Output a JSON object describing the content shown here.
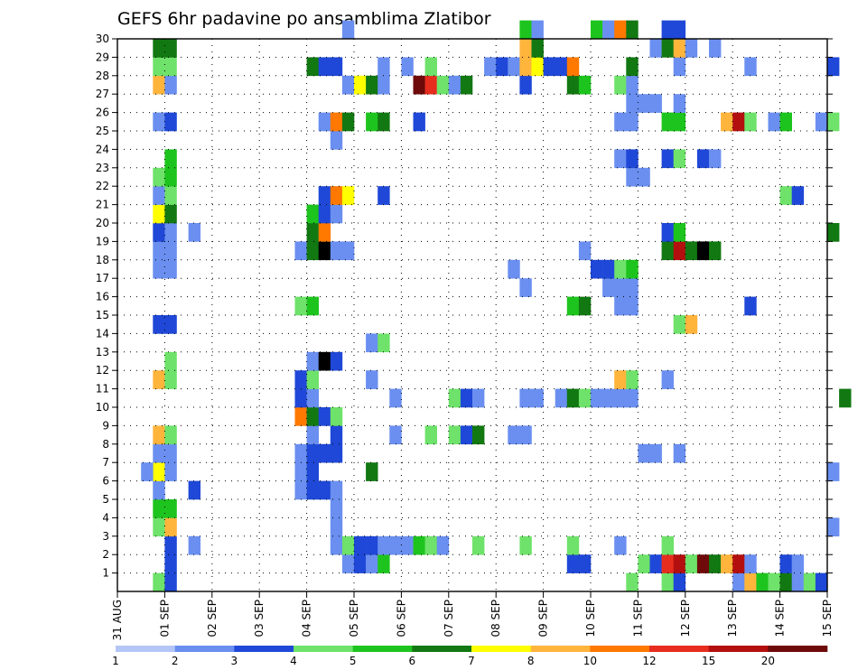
{
  "chart_data": {
    "type": "heatmap",
    "title": "GEFS 6hr padavine po ansamblima Zlatibor",
    "xlabel": "",
    "ylabel": "",
    "x_tick_labels": [
      "31 AUG",
      "01 SEP",
      "02 SEP",
      "03 SEP",
      "04 SEP",
      "05 SEP",
      "06 SEP",
      "07 SEP",
      "08 SEP",
      "09 SEP",
      "10 SEP",
      "11 SEP",
      "12 SEP",
      "13 SEP",
      "14 SEP",
      "15 SEP"
    ],
    "y_tick_labels": [
      "1",
      "2",
      "3",
      "4",
      "5",
      "6",
      "7",
      "8",
      "9",
      "10",
      "11",
      "12",
      "13",
      "14",
      "15",
      "16",
      "17",
      "18",
      "19",
      "20",
      "21",
      "22",
      "23",
      "24",
      "25",
      "26",
      "27",
      "28",
      "29",
      "30"
    ],
    "y_range": [
      0,
      30
    ],
    "x_range_days": [
      0,
      15
    ],
    "steps_per_day": 4,
    "grid": "dotted",
    "colorbar": {
      "position": "bottom",
      "levels": [
        "1",
        "2",
        "3",
        "4",
        "5",
        "6",
        "7",
        "8",
        "10",
        "12",
        "15",
        "20"
      ],
      "colors": [
        "#b3c6f7",
        "#6a8ff0",
        "#1f48d8",
        "#6ee26a",
        "#1ec41e",
        "#127812",
        "#ffff00",
        "#ffb43c",
        "#ff7800",
        "#e62d1e",
        "#b40f0f",
        "#6e0a0a"
      ]
    },
    "cells": [
      [
        0.75,
        0,
        3
      ],
      [
        0.75,
        3,
        3
      ],
      [
        0.75,
        4,
        4
      ],
      [
        0.75,
        5,
        1
      ],
      [
        0.75,
        6,
        6
      ],
      [
        0.75,
        7,
        1
      ],
      [
        0.75,
        8,
        7
      ],
      [
        0.75,
        11,
        7
      ],
      [
        0.75,
        14,
        2
      ],
      [
        0.75,
        17,
        1
      ],
      [
        0.75,
        18,
        1
      ],
      [
        0.75,
        19,
        2
      ],
      [
        0.75,
        20,
        6
      ],
      [
        0.75,
        21,
        1
      ],
      [
        0.75,
        22,
        3
      ],
      [
        0.75,
        25,
        1
      ],
      [
        0.75,
        27,
        7
      ],
      [
        0.75,
        28,
        3
      ],
      [
        0.75,
        29,
        5
      ],
      [
        1.0,
        0,
        2
      ],
      [
        1.0,
        1,
        2
      ],
      [
        1.0,
        2,
        2
      ],
      [
        1.0,
        3,
        7
      ],
      [
        1.0,
        4,
        4
      ],
      [
        1.0,
        6,
        1
      ],
      [
        1.0,
        7,
        1
      ],
      [
        1.0,
        8,
        3
      ],
      [
        1.0,
        11,
        3
      ],
      [
        1.0,
        12,
        3
      ],
      [
        1.0,
        14,
        2
      ],
      [
        1.0,
        17,
        1
      ],
      [
        1.0,
        18,
        1
      ],
      [
        1.0,
        19,
        1
      ],
      [
        1.0,
        20,
        5
      ],
      [
        1.0,
        21,
        3
      ],
      [
        1.0,
        22,
        4
      ],
      [
        1.0,
        23,
        4
      ],
      [
        1.0,
        25,
        2
      ],
      [
        1.0,
        27,
        1
      ],
      [
        1.0,
        28,
        3
      ],
      [
        1.0,
        29,
        5
      ],
      [
        0.5,
        6,
        1
      ],
      [
        1.5,
        2,
        1
      ],
      [
        1.5,
        5,
        2
      ],
      [
        1.5,
        19,
        1
      ],
      [
        3.75,
        9,
        8
      ],
      [
        3.75,
        10,
        2
      ],
      [
        3.75,
        11,
        2
      ],
      [
        3.75,
        15,
        3
      ],
      [
        3.75,
        5,
        1
      ],
      [
        3.75,
        6,
        1
      ],
      [
        3.75,
        7,
        1
      ],
      [
        3.75,
        18,
        1
      ],
      [
        4.0,
        5,
        2
      ],
      [
        4.0,
        6,
        2
      ],
      [
        4.0,
        7,
        2
      ],
      [
        4.0,
        8,
        1
      ],
      [
        4.0,
        9,
        5
      ],
      [
        4.0,
        10,
        1
      ],
      [
        4.0,
        11,
        3
      ],
      [
        4.0,
        12,
        1
      ],
      [
        4.0,
        15,
        4
      ],
      [
        4.0,
        18,
        5
      ],
      [
        4.0,
        19,
        5
      ],
      [
        4.0,
        20,
        4
      ],
      [
        4.0,
        28,
        5
      ],
      [
        4.25,
        5,
        2
      ],
      [
        4.25,
        7,
        2
      ],
      [
        4.25,
        9,
        2
      ],
      [
        4.25,
        12,
        12
      ],
      [
        4.25,
        18,
        12
      ],
      [
        4.25,
        19,
        8
      ],
      [
        4.25,
        20,
        2
      ],
      [
        4.25,
        21,
        2
      ],
      [
        4.25,
        25,
        1
      ],
      [
        4.25,
        28,
        2
      ],
      [
        4.5,
        2,
        1
      ],
      [
        4.5,
        3,
        1
      ],
      [
        4.5,
        4,
        1
      ],
      [
        4.5,
        5,
        1
      ],
      [
        4.5,
        7,
        2
      ],
      [
        4.5,
        8,
        2
      ],
      [
        4.5,
        9,
        3
      ],
      [
        4.5,
        12,
        2
      ],
      [
        4.5,
        18,
        1
      ],
      [
        4.5,
        20,
        1
      ],
      [
        4.5,
        21,
        8
      ],
      [
        4.5,
        24,
        1
      ],
      [
        4.5,
        25,
        8
      ],
      [
        4.5,
        28,
        2
      ],
      [
        4.75,
        1,
        1
      ],
      [
        4.75,
        2,
        3
      ],
      [
        4.75,
        18,
        1
      ],
      [
        4.75,
        21,
        6
      ],
      [
        4.75,
        25,
        5
      ],
      [
        4.75,
        27,
        1
      ],
      [
        4.75,
        30,
        1
      ],
      [
        5.0,
        1,
        2
      ],
      [
        5.0,
        2,
        2
      ],
      [
        5.0,
        27,
        6
      ],
      [
        5.25,
        1,
        1
      ],
      [
        5.25,
        2,
        2
      ],
      [
        5.25,
        6,
        5
      ],
      [
        5.25,
        11,
        1
      ],
      [
        5.25,
        13,
        1
      ],
      [
        5.25,
        25,
        4
      ],
      [
        5.25,
        27,
        5
      ],
      [
        5.5,
        1,
        4
      ],
      [
        5.5,
        2,
        1
      ],
      [
        5.5,
        13,
        3
      ],
      [
        5.5,
        21,
        2
      ],
      [
        5.5,
        25,
        5
      ],
      [
        5.5,
        27,
        1
      ],
      [
        5.5,
        28,
        1
      ],
      [
        5.75,
        2,
        1
      ],
      [
        5.75,
        8,
        1
      ],
      [
        5.75,
        10,
        1
      ],
      [
        6.0,
        2,
        1
      ],
      [
        6.0,
        28,
        1
      ],
      [
        6.25,
        2,
        4
      ],
      [
        6.25,
        25,
        2
      ],
      [
        6.25,
        27,
        11
      ],
      [
        6.5,
        2,
        3
      ],
      [
        6.5,
        8,
        3
      ],
      [
        6.5,
        27,
        9
      ],
      [
        6.5,
        28,
        3
      ],
      [
        6.75,
        2,
        1
      ],
      [
        6.75,
        27,
        3
      ],
      [
        7.0,
        8,
        3
      ],
      [
        7.0,
        10,
        3
      ],
      [
        7.0,
        27,
        1
      ],
      [
        7.25,
        8,
        2
      ],
      [
        7.25,
        10,
        2
      ],
      [
        7.25,
        27,
        5
      ],
      [
        7.5,
        2,
        3
      ],
      [
        7.5,
        8,
        5
      ],
      [
        7.5,
        10,
        1
      ],
      [
        7.75,
        28,
        1
      ],
      [
        8.0,
        28,
        2
      ],
      [
        8.25,
        8,
        1
      ],
      [
        8.25,
        17,
        1
      ],
      [
        8.25,
        28,
        1
      ],
      [
        8.5,
        2,
        3
      ],
      [
        8.5,
        8,
        1
      ],
      [
        8.5,
        10,
        1
      ],
      [
        8.5,
        16,
        1
      ],
      [
        8.5,
        27,
        2
      ],
      [
        8.5,
        28,
        7
      ],
      [
        8.5,
        29,
        7
      ],
      [
        8.5,
        30,
        4
      ],
      [
        8.75,
        10,
        1
      ],
      [
        8.75,
        28,
        6
      ],
      [
        8.75,
        29,
        5
      ],
      [
        8.75,
        30,
        1
      ],
      [
        9.0,
        28,
        2
      ],
      [
        9.25,
        10,
        1
      ],
      [
        9.25,
        28,
        2
      ],
      [
        9.5,
        1,
        2
      ],
      [
        9.5,
        2,
        3
      ],
      [
        9.5,
        10,
        5
      ],
      [
        9.5,
        15,
        4
      ],
      [
        9.5,
        27,
        5
      ],
      [
        9.5,
        28,
        8
      ],
      [
        9.75,
        1,
        2
      ],
      [
        9.75,
        10,
        3
      ],
      [
        9.75,
        15,
        5
      ],
      [
        9.75,
        18,
        1
      ],
      [
        9.75,
        27,
        4
      ],
      [
        10.0,
        10,
        1
      ],
      [
        10.0,
        17,
        2
      ],
      [
        10.0,
        30,
        4
      ],
      [
        10.25,
        10,
        1
      ],
      [
        10.25,
        16,
        1
      ],
      [
        10.25,
        17,
        2
      ],
      [
        10.25,
        30,
        1
      ],
      [
        10.5,
        2,
        1
      ],
      [
        10.5,
        10,
        1
      ],
      [
        10.5,
        11,
        7
      ],
      [
        10.5,
        15,
        1
      ],
      [
        10.5,
        16,
        1
      ],
      [
        10.5,
        17,
        3
      ],
      [
        10.5,
        23,
        1
      ],
      [
        10.5,
        25,
        1
      ],
      [
        10.5,
        27,
        3
      ],
      [
        10.5,
        30,
        8
      ],
      [
        10.75,
        0,
        3
      ],
      [
        10.75,
        10,
        1
      ],
      [
        10.75,
        11,
        3
      ],
      [
        10.75,
        15,
        1
      ],
      [
        10.75,
        16,
        1
      ],
      [
        10.75,
        17,
        4
      ],
      [
        10.75,
        22,
        1
      ],
      [
        10.75,
        23,
        2
      ],
      [
        10.75,
        25,
        1
      ],
      [
        10.75,
        26,
        1
      ],
      [
        10.75,
        27,
        1
      ],
      [
        10.75,
        28,
        5
      ],
      [
        10.75,
        30,
        5
      ],
      [
        11.0,
        1,
        3
      ],
      [
        11.0,
        7,
        1
      ],
      [
        11.0,
        22,
        1
      ],
      [
        11.0,
        26,
        1
      ],
      [
        11.25,
        1,
        2
      ],
      [
        11.25,
        7,
        1
      ],
      [
        11.25,
        26,
        1
      ],
      [
        11.25,
        29,
        1
      ],
      [
        11.5,
        0,
        3
      ],
      [
        11.5,
        1,
        9
      ],
      [
        11.5,
        2,
        3
      ],
      [
        11.5,
        11,
        1
      ],
      [
        11.5,
        18,
        5
      ],
      [
        11.5,
        19,
        2
      ],
      [
        11.5,
        23,
        2
      ],
      [
        11.5,
        25,
        4
      ],
      [
        11.5,
        29,
        5
      ],
      [
        11.5,
        30,
        2
      ],
      [
        11.75,
        0,
        2
      ],
      [
        11.75,
        1,
        10
      ],
      [
        11.75,
        7,
        1
      ],
      [
        11.75,
        14,
        3
      ],
      [
        11.75,
        18,
        10
      ],
      [
        11.75,
        19,
        4
      ],
      [
        11.75,
        23,
        3
      ],
      [
        11.75,
        25,
        4
      ],
      [
        11.75,
        26,
        1
      ],
      [
        11.75,
        28,
        1
      ],
      [
        11.75,
        29,
        7
      ],
      [
        11.75,
        30,
        2
      ],
      [
        12.0,
        1,
        3
      ],
      [
        12.0,
        14,
        7
      ],
      [
        12.0,
        18,
        5
      ],
      [
        12.0,
        29,
        1
      ],
      [
        12.25,
        1,
        11
      ],
      [
        12.25,
        18,
        12
      ],
      [
        12.25,
        23,
        2
      ],
      [
        12.5,
        1,
        5
      ],
      [
        12.5,
        18,
        5
      ],
      [
        12.5,
        23,
        1
      ],
      [
        12.5,
        29,
        1
      ],
      [
        12.75,
        1,
        7
      ],
      [
        12.75,
        25,
        7
      ],
      [
        13.0,
        0,
        1
      ],
      [
        13.0,
        1,
        10
      ],
      [
        13.0,
        25,
        10
      ],
      [
        13.25,
        0,
        7
      ],
      [
        13.25,
        1,
        1
      ],
      [
        13.25,
        15,
        2
      ],
      [
        13.25,
        25,
        3
      ],
      [
        13.25,
        28,
        1
      ],
      [
        13.5,
        0,
        4
      ],
      [
        13.75,
        0,
        3
      ],
      [
        13.75,
        25,
        1
      ],
      [
        14.0,
        0,
        5
      ],
      [
        14.0,
        1,
        2
      ],
      [
        14.0,
        21,
        3
      ],
      [
        14.0,
        25,
        4
      ],
      [
        14.25,
        0,
        1
      ],
      [
        14.25,
        1,
        1
      ],
      [
        14.25,
        21,
        2
      ],
      [
        14.5,
        0,
        3
      ],
      [
        14.75,
        0,
        2
      ],
      [
        14.75,
        25,
        1
      ],
      [
        15.0,
        3,
        1
      ],
      [
        15.0,
        6,
        1
      ],
      [
        15.0,
        19,
        5
      ],
      [
        15.0,
        25,
        3
      ],
      [
        15.0,
        28,
        2
      ],
      [
        15.25,
        10,
        5
      ]
    ]
  }
}
